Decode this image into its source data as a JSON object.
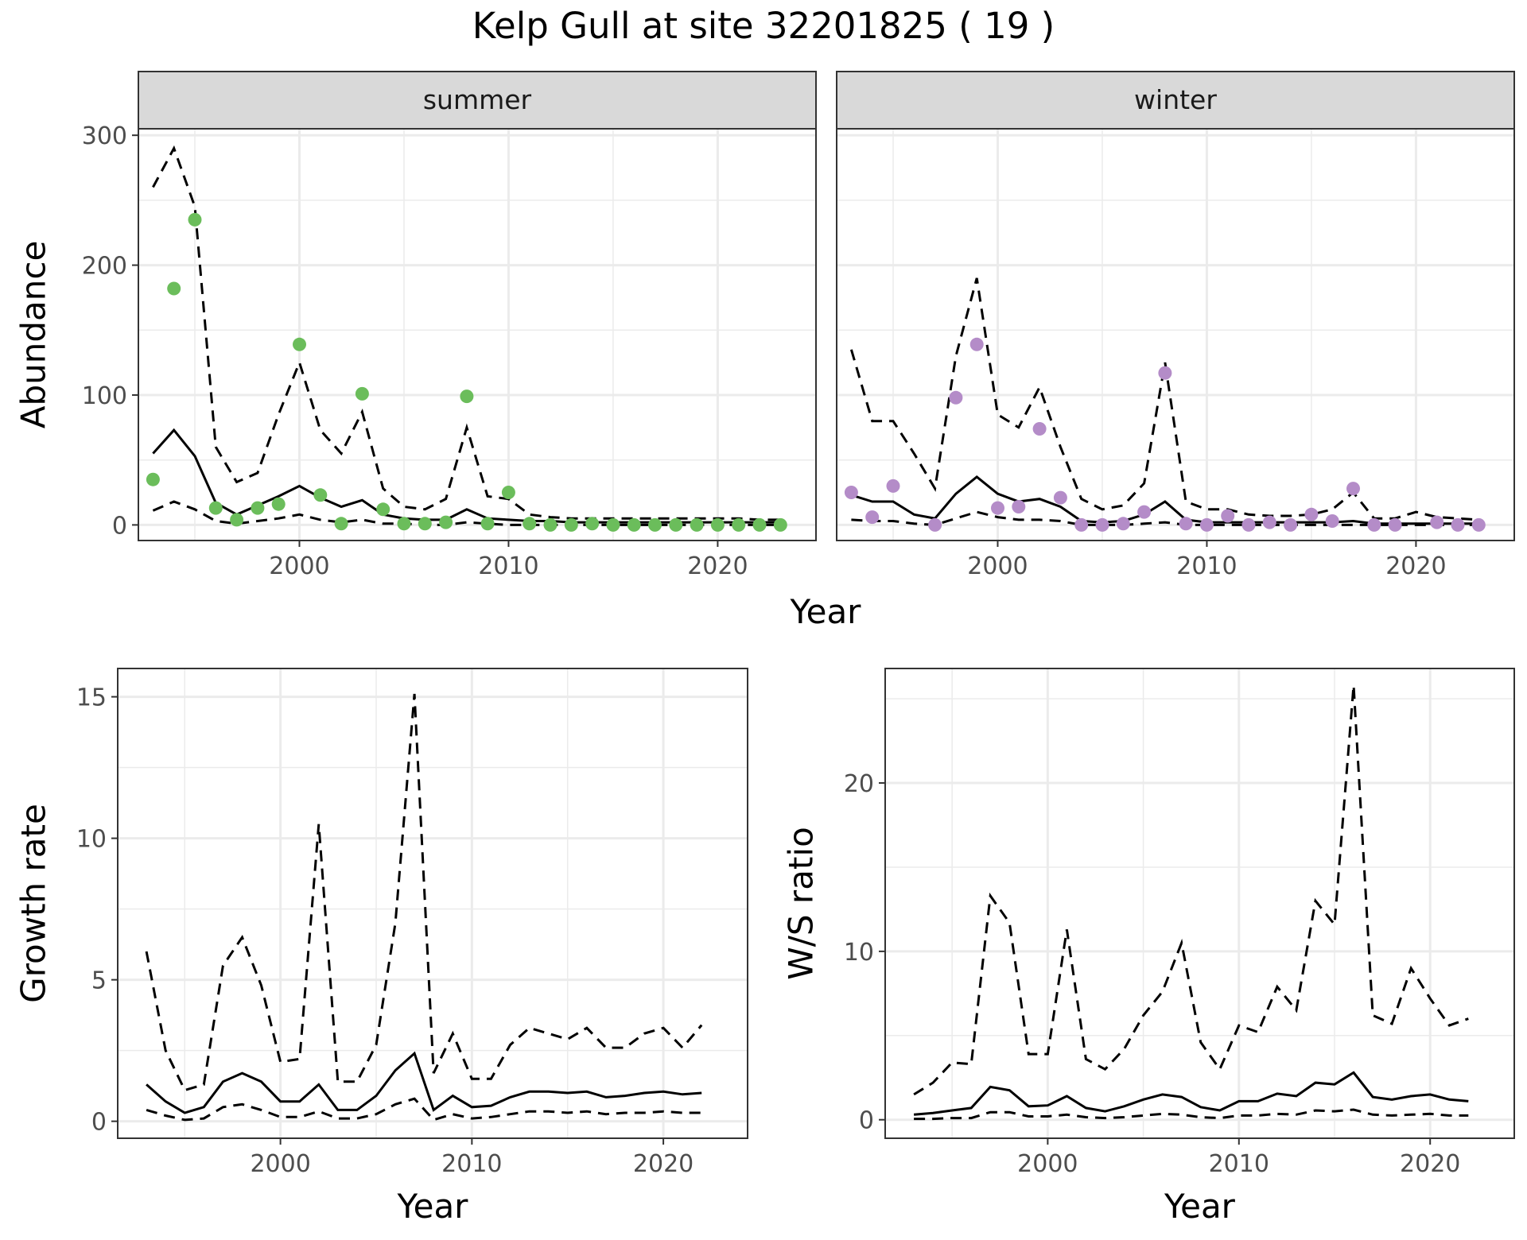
{
  "figure": {
    "title": "Kelp Gull at site 32201825 ( 19 )",
    "abundance_xlabel": "Year",
    "colors": {
      "summer_points": "#6bbd5b",
      "winter_points": "#b48cc8",
      "lines": "#000000"
    }
  },
  "chart_data": [
    {
      "type": "line",
      "facet": "summer",
      "ylabel": "Abundance",
      "xlabel": "Year",
      "xlim": [
        1992.3,
        2024.7
      ],
      "ylim": [
        -12,
        305
      ],
      "xticks": [
        2000,
        2010,
        2020
      ],
      "yticks": [
        0,
        100,
        200,
        300
      ],
      "x": [
        1993,
        1994,
        1995,
        1996,
        1997,
        1998,
        1999,
        2000,
        2001,
        2002,
        2003,
        2004,
        2005,
        2006,
        2007,
        2008,
        2009,
        2010,
        2011,
        2012,
        2013,
        2014,
        2015,
        2016,
        2017,
        2018,
        2019,
        2020,
        2021,
        2022,
        2023
      ],
      "series": [
        {
          "name": "",
          "kind": "points",
          "values": [
            35,
            182,
            235,
            13,
            4,
            13,
            16,
            139,
            23,
            1,
            101,
            12,
            1,
            1,
            2,
            99,
            1,
            25,
            1,
            0,
            0,
            1,
            0,
            0,
            0,
            0,
            0,
            0,
            0,
            0,
            0
          ]
        },
        {
          "name": "",
          "kind": "mean",
          "values": [
            55,
            73,
            53,
            17,
            8,
            15,
            22,
            30,
            21,
            14,
            19,
            8,
            5,
            4,
            4,
            12,
            5,
            4,
            3,
            3,
            2,
            2,
            2,
            2,
            2,
            2,
            2,
            2,
            2,
            2,
            2
          ]
        },
        {
          "name": "",
          "kind": "upper",
          "values": [
            260,
            290,
            245,
            60,
            33,
            40,
            85,
            125,
            73,
            55,
            87,
            28,
            14,
            12,
            20,
            75,
            22,
            20,
            8,
            6,
            5,
            5,
            5,
            5,
            5,
            5,
            5,
            5,
            5,
            4,
            4
          ]
        },
        {
          "name": "",
          "kind": "lower",
          "values": [
            11,
            18,
            12,
            3,
            1,
            3,
            5,
            8,
            4,
            2,
            4,
            1,
            1,
            0,
            0,
            2,
            1,
            0,
            0,
            0,
            0,
            0,
            0,
            0,
            0,
            0,
            0,
            0,
            0,
            0,
            0
          ]
        }
      ]
    },
    {
      "type": "line",
      "facet": "winter",
      "ylabel": "",
      "xlabel": "Year",
      "xlim": [
        1992.3,
        2024.7
      ],
      "ylim": [
        -12,
        305
      ],
      "xticks": [
        2000,
        2010,
        2020
      ],
      "yticks": [
        0,
        100,
        200,
        300
      ],
      "x": [
        1993,
        1994,
        1995,
        1996,
        1997,
        1998,
        1999,
        2000,
        2001,
        2002,
        2003,
        2004,
        2005,
        2006,
        2007,
        2008,
        2009,
        2010,
        2011,
        2012,
        2013,
        2014,
        2015,
        2016,
        2017,
        2018,
        2019,
        2020,
        2021,
        2022,
        2023
      ],
      "series": [
        {
          "name": "",
          "kind": "points",
          "values": [
            25,
            6,
            30,
            null,
            0,
            98,
            139,
            13,
            14,
            74,
            21,
            0,
            0,
            1,
            10,
            117,
            1,
            0,
            7,
            0,
            2,
            0,
            8,
            3,
            28,
            0,
            0,
            null,
            2,
            0,
            0
          ]
        },
        {
          "name": "",
          "kind": "mean",
          "values": [
            23,
            18,
            18,
            8,
            5,
            24,
            37,
            24,
            18,
            20,
            14,
            3,
            2,
            3,
            8,
            18,
            4,
            2,
            2,
            2,
            2,
            2,
            2,
            2,
            3,
            1,
            1,
            1,
            1,
            1,
            1
          ]
        },
        {
          "name": "",
          "kind": "upper",
          "values": [
            135,
            80,
            80,
            55,
            28,
            130,
            190,
            85,
            75,
            106,
            60,
            20,
            12,
            15,
            32,
            125,
            18,
            12,
            12,
            8,
            7,
            7,
            8,
            12,
            25,
            5,
            5,
            10,
            6,
            5,
            4
          ]
        },
        {
          "name": "",
          "kind": "lower",
          "values": [
            4,
            3,
            3,
            1,
            0,
            5,
            10,
            6,
            4,
            4,
            3,
            0,
            0,
            0,
            1,
            2,
            0,
            0,
            0,
            0,
            0,
            0,
            0,
            0,
            0,
            0,
            0,
            0,
            0,
            0,
            0
          ]
        }
      ]
    },
    {
      "type": "line",
      "facet": "",
      "ylabel": "Growth rate",
      "xlabel": "Year",
      "xlim": [
        1991.5,
        2024.4
      ],
      "ylim": [
        -0.6,
        16.0
      ],
      "xticks": [
        2000,
        2010,
        2020
      ],
      "yticks": [
        0,
        5,
        10,
        15
      ],
      "x": [
        1993,
        1994,
        1995,
        1996,
        1997,
        1998,
        1999,
        2000,
        2001,
        2002,
        2003,
        2004,
        2005,
        2006,
        2007,
        2008,
        2009,
        2010,
        2011,
        2012,
        2013,
        2014,
        2015,
        2016,
        2017,
        2018,
        2019,
        2020,
        2021,
        2022
      ],
      "series": [
        {
          "name": "",
          "kind": "mean",
          "values": [
            1.3,
            0.7,
            0.3,
            0.5,
            1.4,
            1.7,
            1.4,
            0.7,
            0.7,
            1.3,
            0.4,
            0.4,
            0.9,
            1.8,
            2.4,
            0.4,
            0.9,
            0.5,
            0.55,
            0.85,
            1.05,
            1.05,
            1.0,
            1.05,
            0.85,
            0.9,
            1.0,
            1.05,
            0.95,
            1.0
          ]
        },
        {
          "name": "",
          "kind": "upper",
          "values": [
            6.0,
            2.5,
            1.1,
            1.3,
            5.5,
            6.5,
            4.8,
            2.1,
            2.2,
            10.5,
            1.4,
            1.4,
            2.7,
            7.0,
            15.1,
            1.7,
            3.1,
            1.5,
            1.5,
            2.7,
            3.3,
            3.1,
            2.9,
            3.3,
            2.6,
            2.6,
            3.1,
            3.3,
            2.6,
            3.4
          ]
        },
        {
          "name": "",
          "kind": "lower",
          "values": [
            0.4,
            0.2,
            0.05,
            0.1,
            0.5,
            0.6,
            0.4,
            0.15,
            0.15,
            0.35,
            0.1,
            0.1,
            0.25,
            0.6,
            0.8,
            0.05,
            0.25,
            0.1,
            0.15,
            0.25,
            0.35,
            0.35,
            0.3,
            0.35,
            0.25,
            0.3,
            0.3,
            0.35,
            0.3,
            0.3
          ]
        }
      ]
    },
    {
      "type": "line",
      "facet": "",
      "ylabel": "W/S ratio",
      "xlabel": "Year",
      "xlim": [
        1991.5,
        2024.4
      ],
      "ylim": [
        -1.1,
        26.8
      ],
      "xticks": [
        2000,
        2010,
        2020
      ],
      "yticks": [
        0,
        10,
        20
      ],
      "x": [
        1993,
        1994,
        1995,
        1996,
        1997,
        1998,
        1999,
        2000,
        2001,
        2002,
        2003,
        2004,
        2005,
        2006,
        2007,
        2008,
        2009,
        2010,
        2011,
        2012,
        2013,
        2014,
        2015,
        2016,
        2017,
        2018,
        2019,
        2020,
        2021,
        2022
      ],
      "series": [
        {
          "name": "",
          "kind": "mean",
          "values": [
            0.3,
            0.4,
            0.55,
            0.7,
            1.95,
            1.75,
            0.8,
            0.85,
            1.4,
            0.7,
            0.5,
            0.8,
            1.2,
            1.5,
            1.35,
            0.75,
            0.55,
            1.1,
            1.1,
            1.55,
            1.4,
            2.2,
            2.1,
            2.8,
            1.35,
            1.2,
            1.4,
            1.5,
            1.2,
            1.1
          ]
        },
        {
          "name": "",
          "kind": "upper",
          "values": [
            1.5,
            2.2,
            3.4,
            3.3,
            13.3,
            11.7,
            3.9,
            3.9,
            11.3,
            3.6,
            3.0,
            4.2,
            6.2,
            7.6,
            10.5,
            4.6,
            3.0,
            5.6,
            5.2,
            7.9,
            6.5,
            13.0,
            11.6,
            25.8,
            6.2,
            5.7,
            9.0,
            7.2,
            5.6,
            6.0
          ]
        },
        {
          "name": "",
          "kind": "lower",
          "values": [
            0.05,
            0.05,
            0.1,
            0.1,
            0.45,
            0.45,
            0.2,
            0.2,
            0.3,
            0.15,
            0.1,
            0.15,
            0.25,
            0.35,
            0.3,
            0.15,
            0.1,
            0.25,
            0.25,
            0.35,
            0.3,
            0.55,
            0.5,
            0.6,
            0.3,
            0.25,
            0.3,
            0.35,
            0.25,
            0.25
          ]
        }
      ]
    }
  ]
}
